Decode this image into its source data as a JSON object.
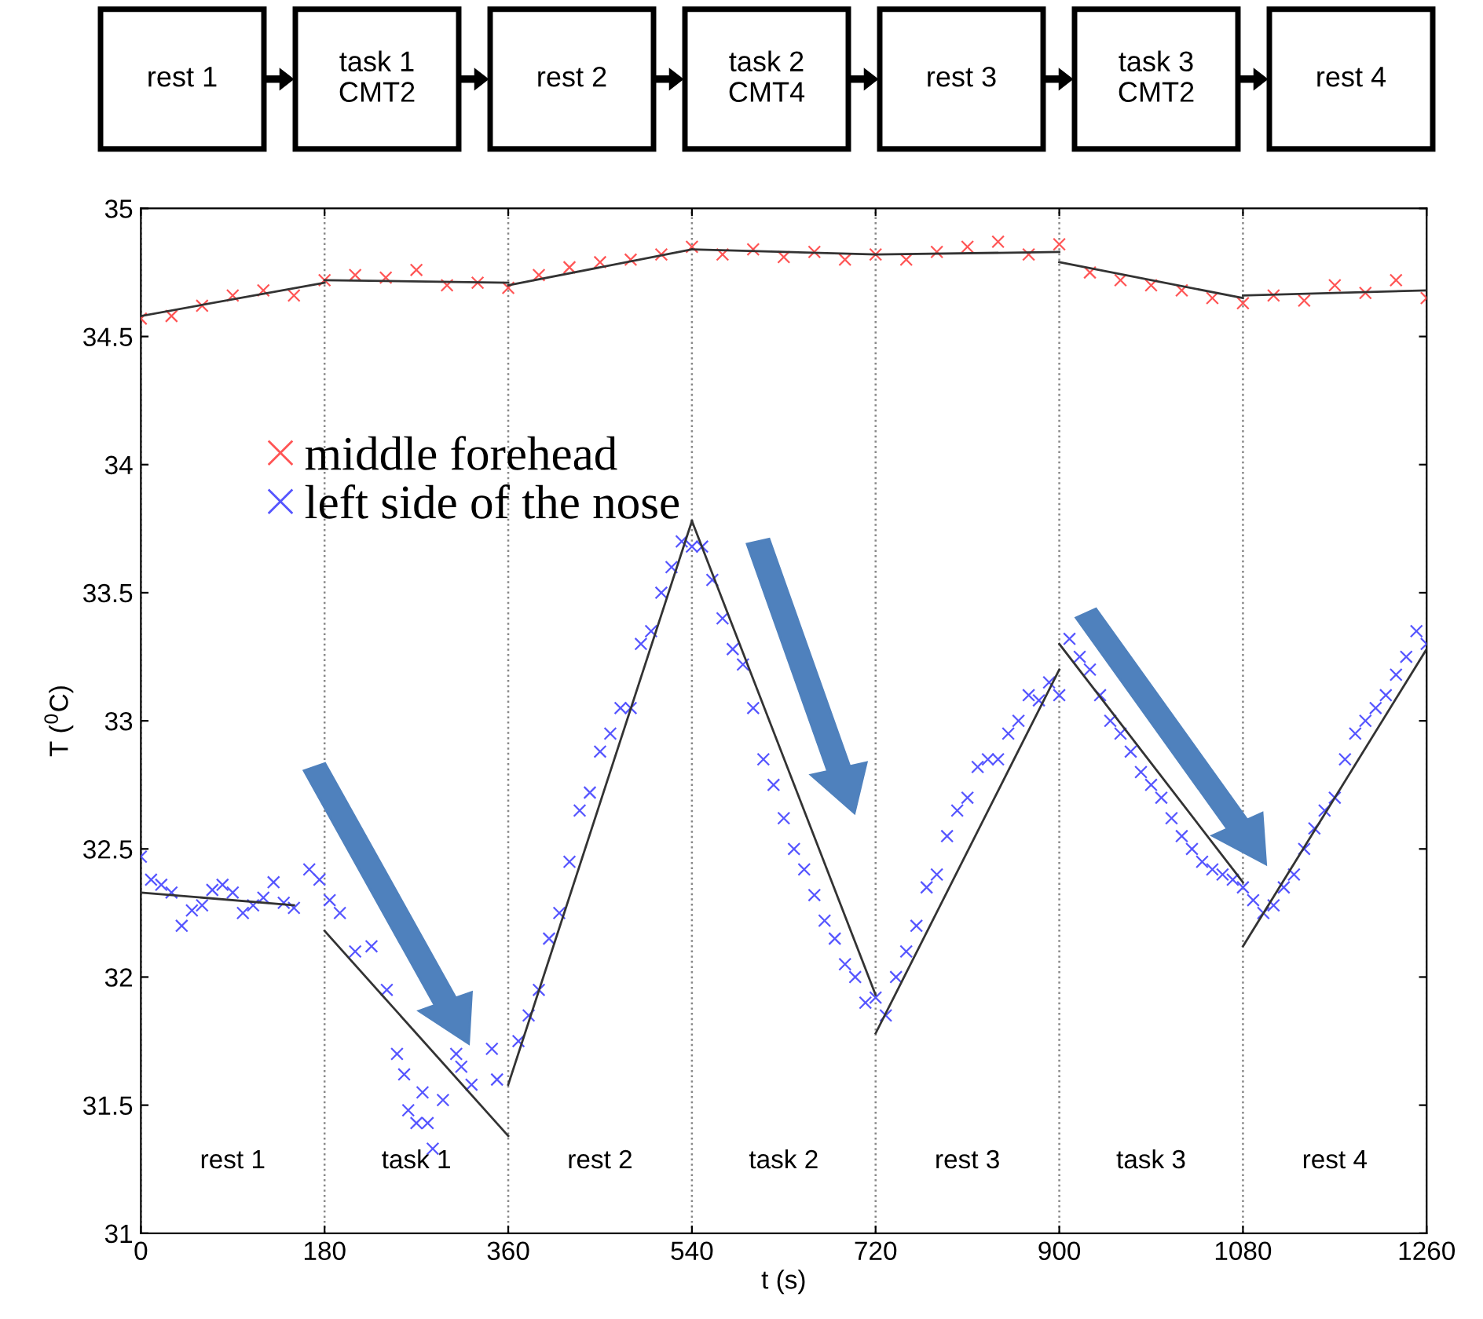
{
  "chart_data": {
    "type": "scatter",
    "xlabel": "t (s)",
    "ylabel": "T ($^{0}$C)",
    "xlim": [
      0,
      1260
    ],
    "xticks": [
      0,
      180,
      360,
      540,
      720,
      900,
      1080,
      1260
    ],
    "ylim": [
      31,
      35
    ],
    "yticks": [
      31,
      31.5,
      32,
      32.5,
      33,
      33.5,
      34,
      34.5,
      35
    ],
    "grid": "x",
    "legend": "top left",
    "series": [
      {
        "name": "middle forehead",
        "marker": "cross",
        "color": "#ff5555",
        "x": [
          0,
          30,
          60,
          90,
          120,
          150,
          180,
          210,
          240,
          270,
          300,
          330,
          360,
          390,
          420,
          450,
          480,
          510,
          540,
          570,
          600,
          630,
          660,
          690,
          720,
          750,
          780,
          810,
          840,
          870,
          900,
          930,
          960,
          990,
          1020,
          1050,
          1080,
          1110,
          1140,
          1170,
          1200,
          1230,
          1260
        ],
        "values": [
          34.57,
          34.58,
          34.62,
          34.66,
          34.68,
          34.66,
          34.72,
          34.74,
          34.73,
          34.76,
          34.7,
          34.71,
          34.69,
          34.74,
          34.77,
          34.79,
          34.8,
          34.82,
          34.85,
          34.82,
          34.84,
          34.81,
          34.83,
          34.8,
          34.82,
          34.8,
          34.83,
          34.85,
          34.87,
          34.82,
          34.86,
          34.75,
          34.72,
          34.7,
          34.68,
          34.65,
          34.63,
          34.66,
          34.64,
          34.7,
          34.67,
          34.72,
          34.65
        ]
      },
      {
        "name": "left side of the nose",
        "marker": "cross",
        "color": "#5555ff",
        "x": [
          0,
          10,
          20,
          30,
          40,
          50,
          60,
          70,
          80,
          90,
          100,
          110,
          120,
          130,
          140,
          150,
          165,
          175,
          185,
          195,
          210,
          226,
          241,
          251,
          258,
          262,
          270,
          276,
          281,
          286,
          296,
          309,
          314,
          324,
          344,
          349,
          370,
          380,
          390,
          400,
          410,
          420,
          430,
          440,
          450,
          460,
          470,
          480,
          490,
          500,
          510,
          520,
          530,
          540,
          550,
          560,
          570,
          580,
          590,
          600,
          610,
          620,
          630,
          640,
          650,
          660,
          670,
          680,
          690,
          700,
          710,
          720,
          730,
          740,
          750,
          760,
          770,
          780,
          790,
          800,
          810,
          820,
          830,
          840,
          850,
          860,
          870,
          880,
          890,
          900,
          910,
          920,
          930,
          940,
          950,
          960,
          970,
          980,
          990,
          1000,
          1010,
          1020,
          1030,
          1040,
          1050,
          1060,
          1070,
          1080,
          1090,
          1100,
          1110,
          1120,
          1130,
          1140,
          1150,
          1160,
          1170,
          1180,
          1190,
          1200,
          1210,
          1220,
          1230,
          1240,
          1250,
          1260
        ],
        "values": [
          32.47,
          32.38,
          32.36,
          32.33,
          32.2,
          32.26,
          32.28,
          32.34,
          32.36,
          32.33,
          32.25,
          32.28,
          32.31,
          32.37,
          32.29,
          32.27,
          32.42,
          32.38,
          32.3,
          32.25,
          32.1,
          32.12,
          31.95,
          31.7,
          31.62,
          31.48,
          31.43,
          31.55,
          31.43,
          31.33,
          31.52,
          31.7,
          31.65,
          31.58,
          31.72,
          31.6,
          31.75,
          31.85,
          31.95,
          32.15,
          32.25,
          32.45,
          32.65,
          32.72,
          32.88,
          32.95,
          33.05,
          33.05,
          33.3,
          33.35,
          33.5,
          33.6,
          33.7,
          33.68,
          33.68,
          33.55,
          33.4,
          33.28,
          33.22,
          33.05,
          32.85,
          32.75,
          32.62,
          32.5,
          32.42,
          32.32,
          32.22,
          32.15,
          32.05,
          32.0,
          31.9,
          31.92,
          31.85,
          32.0,
          32.1,
          32.2,
          32.35,
          32.4,
          32.55,
          32.65,
          32.7,
          32.82,
          32.85,
          32.85,
          32.95,
          33.0,
          33.1,
          33.08,
          33.15,
          33.1,
          33.32,
          33.25,
          33.2,
          33.1,
          33.0,
          32.95,
          32.88,
          32.8,
          32.75,
          32.7,
          32.62,
          32.55,
          32.5,
          32.45,
          32.42,
          32.4,
          32.38,
          32.35,
          32.3,
          32.25,
          32.28,
          32.35,
          32.4,
          32.5,
          32.58,
          32.65,
          32.7,
          32.85,
          32.95,
          33.0,
          33.05,
          33.1,
          33.18,
          33.25,
          33.35,
          33.3
        ]
      },
      {
        "type": "line",
        "color": "#333333",
        "x": [
          0,
          180
        ],
        "values": [
          34.58,
          34.71
        ]
      },
      {
        "type": "line",
        "color": "#333333",
        "x": [
          180,
          360
        ],
        "values": [
          34.72,
          34.71
        ]
      },
      {
        "type": "line",
        "color": "#333333",
        "x": [
          360,
          540
        ],
        "values": [
          34.7,
          34.84
        ]
      },
      {
        "type": "line",
        "color": "#333333",
        "x": [
          540,
          720
        ],
        "values": [
          34.84,
          34.82
        ]
      },
      {
        "type": "line",
        "color": "#333333",
        "x": [
          720,
          900
        ],
        "values": [
          34.82,
          34.83
        ]
      },
      {
        "type": "line",
        "color": "#333333",
        "x": [
          900,
          1080
        ],
        "values": [
          34.79,
          34.65
        ]
      },
      {
        "type": "line",
        "color": "#333333",
        "x": [
          1080,
          1260
        ],
        "values": [
          34.66,
          34.68
        ]
      },
      {
        "type": "line",
        "color": "#333333",
        "x": [
          0,
          150
        ],
        "values": [
          32.33,
          32.28
        ]
      },
      {
        "type": "line",
        "color": "#333333",
        "x": [
          180,
          360
        ],
        "values": [
          32.18,
          31.38
        ]
      },
      {
        "type": "line",
        "color": "#333333",
        "x": [
          360,
          540
        ],
        "values": [
          31.58,
          33.78
        ]
      },
      {
        "type": "line",
        "color": "#333333",
        "x": [
          540,
          720
        ],
        "values": [
          33.78,
          31.93
        ]
      },
      {
        "type": "line",
        "color": "#333333",
        "x": [
          720,
          900
        ],
        "values": [
          31.78,
          33.2
        ]
      },
      {
        "type": "line",
        "color": "#333333",
        "x": [
          900,
          1080
        ],
        "values": [
          33.3,
          32.37
        ]
      },
      {
        "type": "line",
        "color": "#333333",
        "x": [
          1080,
          1260
        ],
        "values": [
          32.12,
          33.28
        ]
      }
    ],
    "annotations": [
      "rest 1",
      "task 1\nCMT2",
      "rest 2",
      "task 2\nCMT4",
      "rest 3",
      "task 3\nCMT2",
      "rest 4",
      "rest 1",
      "task 1",
      "rest 2",
      "task 2",
      "rest 3",
      "task 3",
      "rest 4"
    ]
  }
}
